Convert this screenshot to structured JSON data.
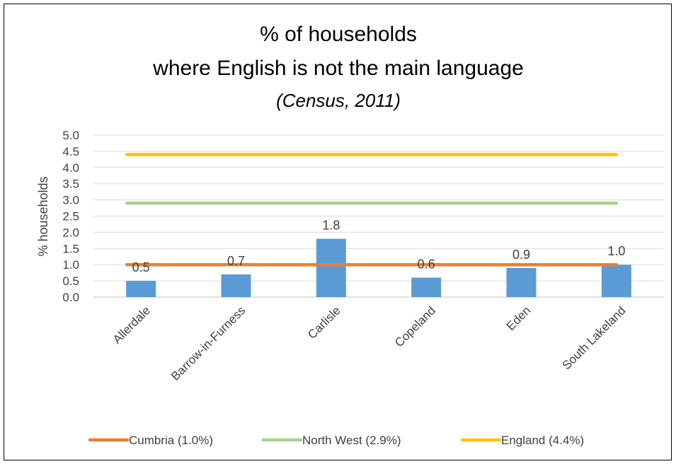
{
  "chart_data": {
    "type": "bar",
    "title_lines": [
      "% of households",
      "where English is not the main language"
    ],
    "subtitle": "(Census, 2011)",
    "xlabel": "",
    "ylabel": "% households",
    "ylim": [
      0,
      5
    ],
    "yticks": [
      "0.0",
      "0.5",
      "1.0",
      "1.5",
      "2.0",
      "2.5",
      "3.0",
      "3.5",
      "4.0",
      "4.5",
      "5.0"
    ],
    "categories": [
      "Allerdale",
      "Barrow-in-Furness",
      "Carlisle",
      "Copeland",
      "Eden",
      "South Lakeland"
    ],
    "values": [
      0.5,
      0.7,
      1.8,
      0.6,
      0.9,
      1.0
    ],
    "data_labels": [
      "0.5",
      "0.7",
      "1.8",
      "0.6",
      "0.9",
      "1.0"
    ],
    "bar_color": "#5b9bd5",
    "grid": true,
    "reference_lines": [
      {
        "name": "Cumbria (1.0%)",
        "value": 1.0,
        "color": "#ed7d31"
      },
      {
        "name": "North West (2.9%)",
        "value": 2.9,
        "color": "#a9d18e"
      },
      {
        "name": "England (4.4%)",
        "value": 4.4,
        "color": "#ffc000"
      }
    ],
    "legend_position": "bottom"
  }
}
